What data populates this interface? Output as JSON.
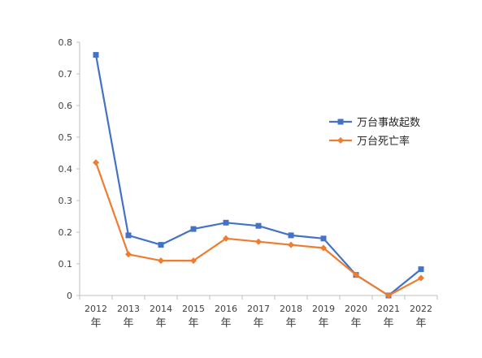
{
  "chart_data": {
    "type": "line",
    "title": "",
    "xlabel": "",
    "ylabel": "",
    "ylim": [
      0,
      0.8
    ],
    "yticks": [
      "0",
      "0.1",
      "0.2",
      "0.3",
      "0.4",
      "0.5",
      "0.6",
      "0.7",
      "0.8"
    ],
    "categories": [
      {
        "year": "2012",
        "unit": "年"
      },
      {
        "year": "2013",
        "unit": "年"
      },
      {
        "year": "2014",
        "unit": "年"
      },
      {
        "year": "2015",
        "unit": "年"
      },
      {
        "year": "2016",
        "unit": "年"
      },
      {
        "year": "2017",
        "unit": "年"
      },
      {
        "year": "2018",
        "unit": "年"
      },
      {
        "year": "2019",
        "unit": "年"
      },
      {
        "year": "2020",
        "unit": "年"
      },
      {
        "year": "2021",
        "unit": "年"
      },
      {
        "year": "2022",
        "unit": "年"
      }
    ],
    "grid": false,
    "legend_position": "right",
    "series": [
      {
        "name": "万台事故起数",
        "color": "#4472C4",
        "marker": "square",
        "values": [
          0.76,
          0.19,
          0.16,
          0.21,
          0.23,
          0.22,
          0.19,
          0.18,
          0.065,
          0.0,
          0.083
        ]
      },
      {
        "name": "万台死亡率",
        "color": "#ED7D31",
        "marker": "diamond",
        "values": [
          0.42,
          0.13,
          0.11,
          0.11,
          0.18,
          0.17,
          0.16,
          0.15,
          0.065,
          0.0,
          0.055
        ]
      }
    ]
  }
}
